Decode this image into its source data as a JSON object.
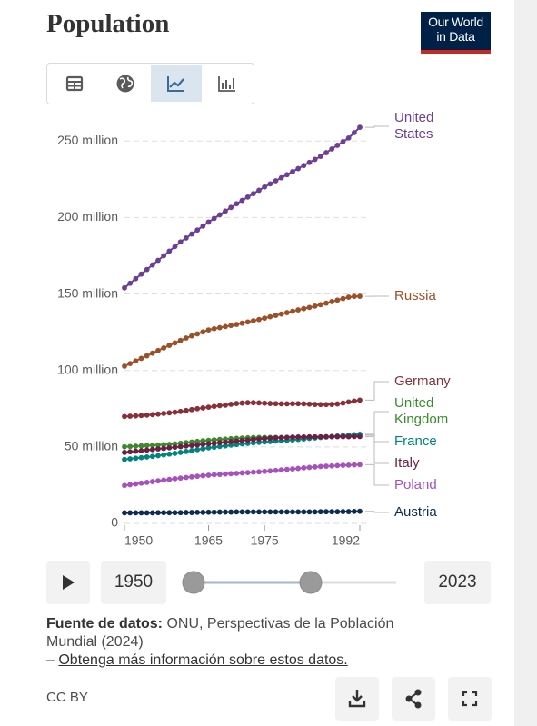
{
  "header": {
    "title": "Population",
    "logo": "Our World in Data"
  },
  "chart_data": {
    "type": "line",
    "x": [
      1950,
      1951,
      1952,
      1953,
      1954,
      1955,
      1956,
      1957,
      1958,
      1959,
      1960,
      1961,
      1962,
      1963,
      1964,
      1965,
      1966,
      1967,
      1968,
      1969,
      1970,
      1971,
      1972,
      1973,
      1974,
      1975,
      1976,
      1977,
      1978,
      1979,
      1980,
      1981,
      1982,
      1983,
      1984,
      1985,
      1986,
      1987,
      1988,
      1989,
      1990,
      1991,
      1992
    ],
    "xlim": [
      1950,
      1992
    ],
    "xticks": [
      1950,
      1965,
      1975,
      1992
    ],
    "ylim": [
      0,
      265000000.0
    ],
    "yticks": [
      0,
      {
        "value": 50000000.0,
        "label": "50 million"
      },
      {
        "value": 100000000.0,
        "label": "100 million"
      },
      {
        "value": 150000000.0,
        "label": "150 million"
      },
      {
        "value": 200000000.0,
        "label": "200 million"
      },
      {
        "value": 250000000.0,
        "label": "250 million"
      }
    ],
    "grid": true,
    "series": [
      {
        "name": "United States",
        "color": "#6d3e91",
        "values": [
          154000000.0,
          157000000.0,
          160000000.0,
          163000000.0,
          166000000.0,
          169000000.0,
          172000000.0,
          175000000.0,
          178000000.0,
          181000000.0,
          184000000.0,
          186600000.0,
          189200000.0,
          191800000.0,
          194400000.0,
          197000000.0,
          199400000.0,
          201800000.0,
          204200000.0,
          206600000.0,
          209000000.0,
          211200000.0,
          213400000.0,
          215600000.0,
          217800000.0,
          220000000.0,
          222000000.0,
          224000000.0,
          226000000.0,
          228000000.0,
          230000000.0,
          232000000.0,
          234000000.0,
          236000000.0,
          238000000.0,
          240000000.0,
          242400000.0,
          244800000.0,
          247200000.0,
          249600000.0,
          252000000.0,
          255500000.0,
          259000000.0
        ]
      },
      {
        "name": "Russia",
        "color": "#9a5129",
        "values": [
          102800000.0,
          104500000.0,
          106200000.0,
          107900000.0,
          109600000.0,
          111300000.0,
          113000000.0,
          114700000.0,
          116400000.0,
          118000000.0,
          119600000.0,
          121200000.0,
          122600000.0,
          123900000.0,
          125200000.0,
          126500000.0,
          127300000.0,
          128000000.0,
          128700000.0,
          129400000.0,
          130100000.0,
          130900000.0,
          131700000.0,
          132500000.0,
          133300000.0,
          134200000.0,
          135100000.0,
          136000000.0,
          136900000.0,
          137800000.0,
          138700000.0,
          139600000.0,
          140400000.0,
          141200000.0,
          142100000.0,
          143000000.0,
          144000000.0,
          145000000.0,
          146000000.0,
          147000000.0,
          147900000.0,
          148400000.0,
          148500000.0
        ]
      },
      {
        "name": "Germany",
        "color": "#883039",
        "values": [
          69900000.0,
          70100000.0,
          70300000.0,
          70500000.0,
          70800000.0,
          71100000.0,
          71500000.0,
          71900000.0,
          72300000.0,
          72700000.0,
          73200000.0,
          73800000.0,
          74400000.0,
          75000000.0,
          75500000.0,
          76000000.0,
          76500000.0,
          77000000.0,
          77300000.0,
          77900000.0,
          78400000.0,
          78700000.0,
          78900000.0,
          78900000.0,
          78800000.0,
          78600000.0,
          78400000.0,
          78300000.0,
          78200000.0,
          78200000.0,
          78300000.0,
          78300000.0,
          78200000.0,
          78000000.0,
          77800000.0,
          77700000.0,
          77700000.0,
          77800000.0,
          78100000.0,
          78700000.0,
          79400000.0,
          80000000.0,
          80600000.0
        ]
      },
      {
        "name": "United Kingdom",
        "color": "#3c8a2e",
        "values": [
          50100000.0,
          50300000.0,
          50500000.0,
          50700000.0,
          50900000.0,
          51100000.0,
          51300000.0,
          51500000.0,
          51700000.0,
          52000000.0,
          52400000.0,
          52800000.0,
          53200000.0,
          53600000.0,
          54000000.0,
          54300000.0,
          54600000.0,
          54900000.0,
          55100000.0,
          55400000.0,
          55600000.0,
          55800000.0,
          56000000.0,
          56100000.0,
          56200000.0,
          56200000.0,
          56200000.0,
          56200000.0,
          56200000.0,
          56300000.0,
          56300000.0,
          56400000.0,
          56400000.0,
          56500000.0,
          56500000.0,
          56600000.0,
          56700000.0,
          56800000.0,
          57000000.0,
          57100000.0,
          57200000.0,
          57400000.0,
          57600000.0
        ]
      },
      {
        "name": "France",
        "color": "#00847e",
        "values": [
          41800000.0,
          42200000.0,
          42600000.0,
          43000000.0,
          43400000.0,
          43800000.0,
          44300000.0,
          44800000.0,
          45300000.0,
          45800000.0,
          46400000.0,
          47000000.0,
          47600000.0,
          48200000.0,
          48800000.0,
          49400000.0,
          49800000.0,
          50300000.0,
          50700000.0,
          51200000.0,
          51600000.0,
          52000000.0,
          52300000.0,
          52700000.0,
          53000000.0,
          53300000.0,
          53500000.0,
          53800000.0,
          54000000.0,
          54300000.0,
          54600000.0,
          54900000.0,
          55200000.0,
          55600000.0,
          55900000.0,
          56200000.0,
          56500000.0,
          56800000.0,
          57100000.0,
          57400000.0,
          57700000.0,
          58000000.0,
          58300000.0
        ]
      },
      {
        "name": "Italy",
        "color": "#6c1f45",
        "values": [
          46400000.0,
          46800000.0,
          47200000.0,
          47500000.0,
          47900000.0,
          48300000.0,
          48700000.0,
          49000000.0,
          49400000.0,
          49800000.0,
          50200000.0,
          50600000.0,
          51000000.0,
          51300000.0,
          51700000.0,
          52100000.0,
          52400000.0,
          52800000.0,
          53100000.0,
          53500000.0,
          53800000.0,
          54200000.0,
          54500000.0,
          54900000.0,
          55200000.0,
          55500000.0,
          55700000.0,
          55900000.0,
          56000000.0,
          56200000.0,
          56400000.0,
          56500000.0,
          56500000.0,
          56600000.0,
          56600000.0,
          56600000.0,
          56600000.0,
          56700000.0,
          56700000.0,
          56700000.0,
          56700000.0,
          56800000.0,
          56800000.0
        ]
      },
      {
        "name": "Poland",
        "color": "#a652ba",
        "values": [
          24800000.0,
          25300000.0,
          25800000.0,
          26300000.0,
          26800000.0,
          27300000.0,
          27800000.0,
          28300000.0,
          28700000.0,
          29200000.0,
          29600000.0,
          30000000.0,
          30400000.0,
          30800000.0,
          31200000.0,
          31500000.0,
          31800000.0,
          32000000.0,
          32300000.0,
          32500000.0,
          32700000.0,
          33000000.0,
          33200000.0,
          33500000.0,
          33700000.0,
          34000000.0,
          34300000.0,
          34600000.0,
          35000000.0,
          35300000.0,
          35600000.0,
          35900000.0,
          36300000.0,
          36600000.0,
          36900000.0,
          37200000.0,
          37400000.0,
          37600000.0,
          37800000.0,
          38000000.0,
          38100000.0,
          38300000.0,
          38400000.0
        ]
      },
      {
        "name": "Austria",
        "color": "#0d2c50",
        "values": [
          6900000.0,
          6900000.0,
          6900000.0,
          6900000.0,
          6900000.0,
          6900000.0,
          7000000.0,
          7000000.0,
          7000000.0,
          7000000.0,
          7000000.0,
          7100000.0,
          7100000.0,
          7200000.0,
          7200000.0,
          7300000.0,
          7300000.0,
          7400000.0,
          7400000.0,
          7400000.0,
          7500000.0,
          7500000.0,
          7500000.0,
          7500000.0,
          7500000.0,
          7500000.0,
          7500000.0,
          7500000.0,
          7500000.0,
          7500000.0,
          7500000.0,
          7500000.0,
          7500000.0,
          7500000.0,
          7500000.0,
          7600000.0,
          7600000.0,
          7600000.0,
          7600000.0,
          7700000.0,
          7700000.0,
          7800000.0,
          7900000.0
        ]
      }
    ]
  },
  "controls": {
    "start_year": "1950",
    "end_year": "2023"
  },
  "footer": {
    "source_label": "Fuente de datos:",
    "source": "ONU, Perspectivas de la Población Mundial (2024)",
    "link_prefix": "–",
    "link": "Obtenga más información sobre estos datos.",
    "license": "CC BY"
  }
}
